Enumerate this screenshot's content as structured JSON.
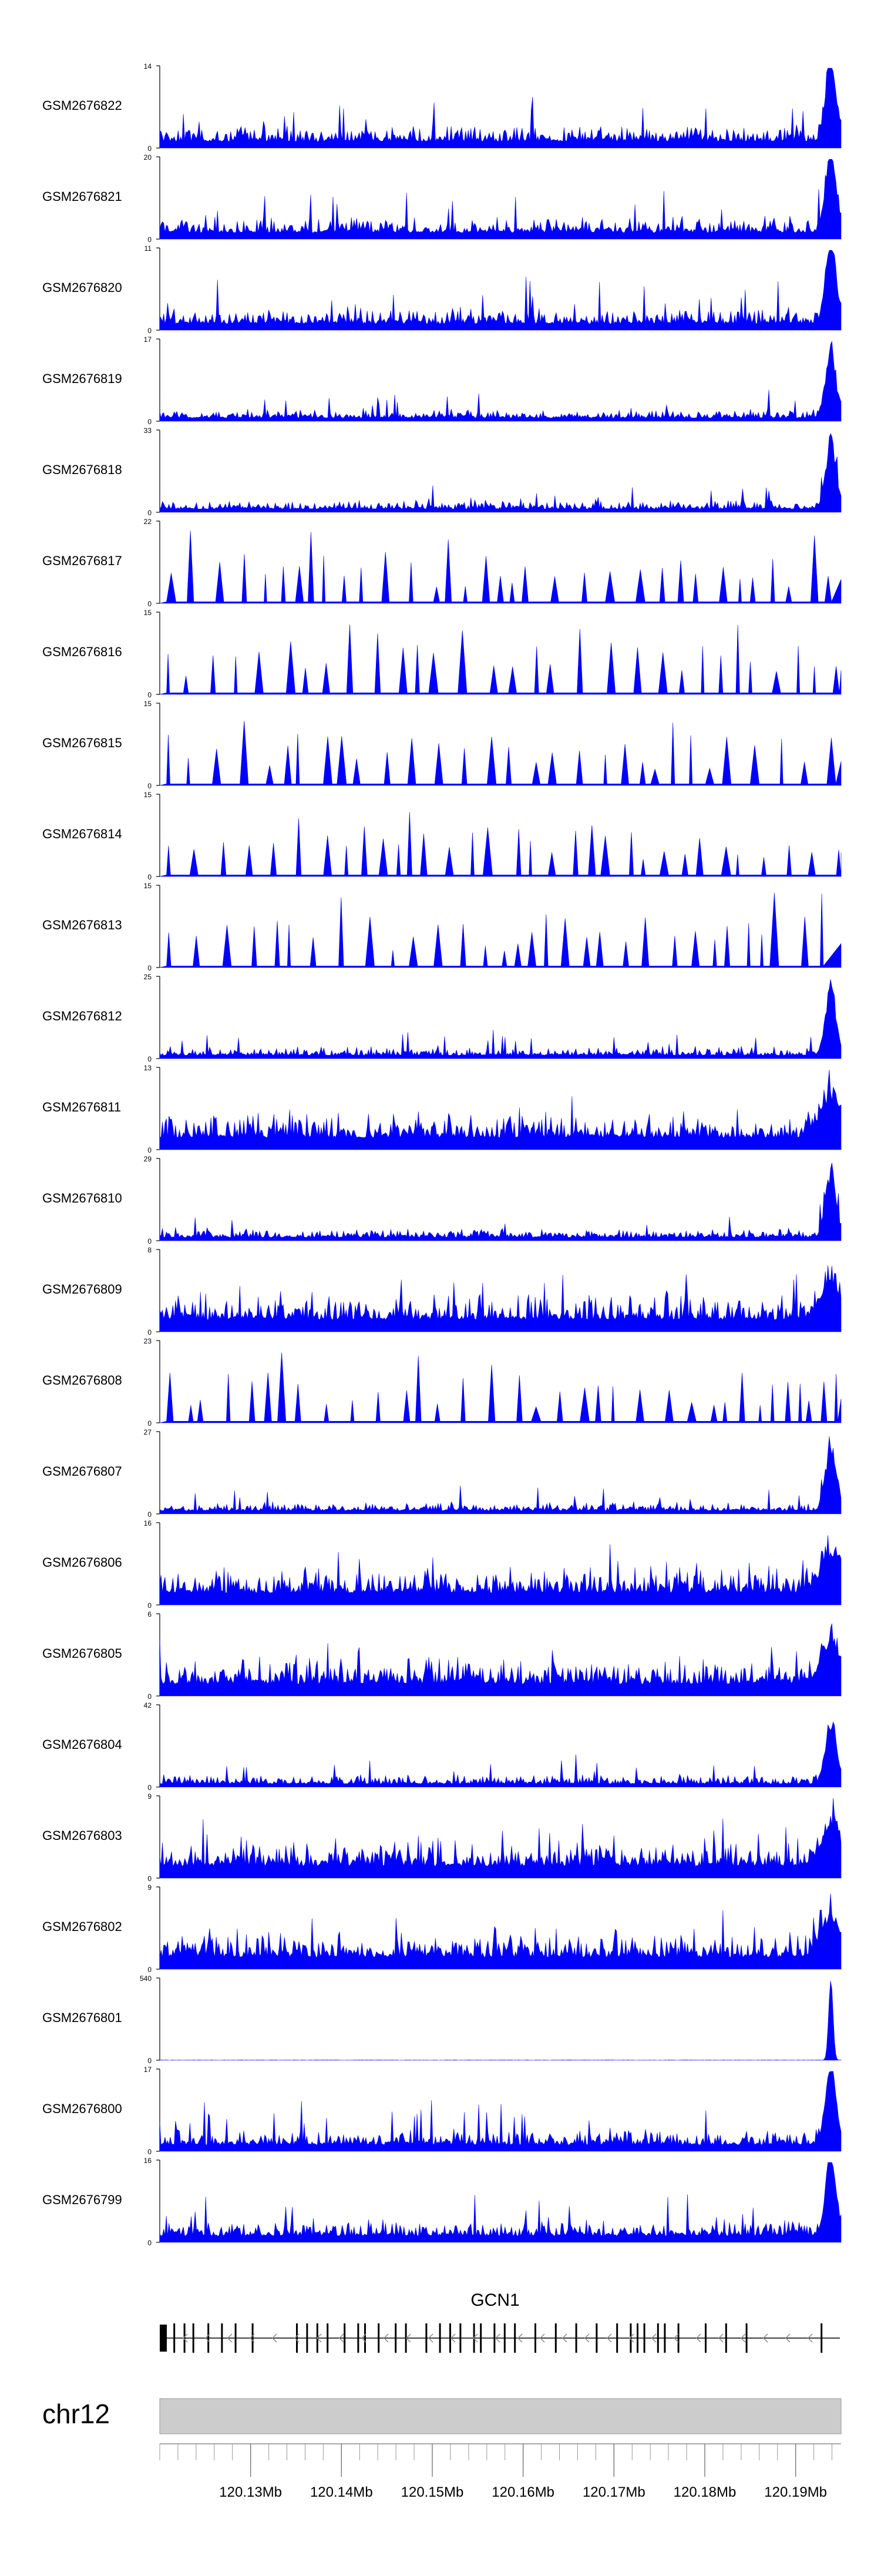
{
  "chart_data": {
    "type": "area",
    "colors": {
      "signal": "#0000ff",
      "axis": "#000000",
      "ideogram": "#cccccc",
      "gene": "#000000"
    },
    "x_range_mb": [
      120.12,
      120.195
    ],
    "tracks": [
      {
        "name": "GSM2676822",
        "ymax": "14",
        "ymin": "0",
        "profile": "peak_right",
        "dense": true
      },
      {
        "name": "GSM2676821",
        "ymax": "20",
        "ymin": "0",
        "profile": "peak_right",
        "dense": true
      },
      {
        "name": "GSM2676820",
        "ymax": "11",
        "ymin": "0",
        "profile": "peak_right",
        "dense": true
      },
      {
        "name": "GSM2676819",
        "ymax": "17",
        "ymin": "0",
        "profile": "peak_right_low",
        "dense": true
      },
      {
        "name": "GSM2676818",
        "ymax": "33",
        "ymin": "0",
        "profile": "peak_right_low",
        "dense": true
      },
      {
        "name": "GSM2676817",
        "ymax": "22",
        "ymin": "0",
        "profile": "sparse",
        "dense": false
      },
      {
        "name": "GSM2676816",
        "ymax": "15",
        "ymin": "0",
        "profile": "sparse",
        "dense": false
      },
      {
        "name": "GSM2676815",
        "ymax": "15",
        "ymin": "0",
        "profile": "sparse",
        "dense": false
      },
      {
        "name": "GSM2676814",
        "ymax": "15",
        "ymin": "0",
        "profile": "sparse",
        "dense": false
      },
      {
        "name": "GSM2676813",
        "ymax": "15",
        "ymin": "0",
        "profile": "sparse",
        "dense": false
      },
      {
        "name": "GSM2676812",
        "ymax": "25",
        "ymin": "0",
        "profile": "peak_right_low",
        "dense": true
      },
      {
        "name": "GSM2676811",
        "ymax": "13",
        "ymin": "0",
        "profile": "uniform",
        "dense": true
      },
      {
        "name": "GSM2676810",
        "ymax": "29",
        "ymin": "0",
        "profile": "peak_right_low",
        "dense": true
      },
      {
        "name": "GSM2676809",
        "ymax": "8",
        "ymin": "0",
        "profile": "uniform",
        "dense": true
      },
      {
        "name": "GSM2676808",
        "ymax": "23",
        "ymin": "0",
        "profile": "sparse",
        "dense": false
      },
      {
        "name": "GSM2676807",
        "ymax": "27",
        "ymin": "0",
        "profile": "peak_right_low",
        "dense": true
      },
      {
        "name": "GSM2676806",
        "ymax": "16",
        "ymin": "0",
        "profile": "uniform",
        "dense": true
      },
      {
        "name": "GSM2676805",
        "ymax": "6",
        "ymin": "0",
        "profile": "uniform",
        "dense": true
      },
      {
        "name": "GSM2676804",
        "ymax": "42",
        "ymin": "0",
        "profile": "peak_right_low",
        "dense": true
      },
      {
        "name": "GSM2676803",
        "ymax": "9",
        "ymin": "0",
        "profile": "uniform",
        "dense": true
      },
      {
        "name": "GSM2676802",
        "ymax": "9",
        "ymin": "0",
        "profile": "uniform",
        "dense": true
      },
      {
        "name": "GSM2676801",
        "ymax": "540",
        "ymin": "0",
        "profile": "spike",
        "dense": true
      },
      {
        "name": "GSM2676800",
        "ymax": "17",
        "ymin": "0",
        "profile": "peak_right",
        "dense": true
      },
      {
        "name": "GSM2676799",
        "ymax": "16",
        "ymin": "0",
        "profile": "peak_right",
        "dense": true
      }
    ],
    "gene": {
      "name": "GCN1",
      "strand": "-",
      "start_mb": 120.12,
      "end_mb": 120.195
    },
    "chromosome": {
      "label": "chr12"
    },
    "axis": {
      "ticks": [
        {
          "value": 120.13,
          "label": "120.13Mb"
        },
        {
          "value": 120.14,
          "label": "120.14Mb"
        },
        {
          "value": 120.15,
          "label": "120.15Mb"
        },
        {
          "value": 120.16,
          "label": "120.16Mb"
        },
        {
          "value": 120.17,
          "label": "120.17Mb"
        },
        {
          "value": 120.18,
          "label": "120.18Mb"
        },
        {
          "value": 120.19,
          "label": "120.19Mb"
        }
      ],
      "minor_step_mb": 0.002
    }
  }
}
